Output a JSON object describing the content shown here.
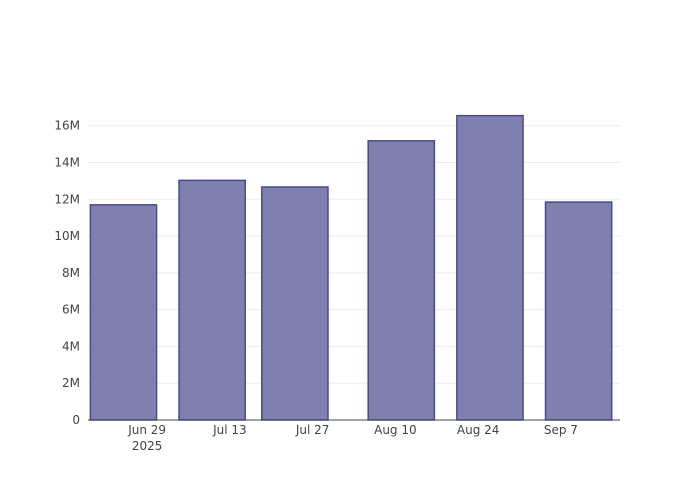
{
  "chart_data": {
    "type": "bar",
    "x": [
      "2025-06-25",
      "2025-07-10",
      "2025-07-24",
      "2025-08-11",
      "2025-08-26",
      "2025-09-10"
    ],
    "values": [
      11700000,
      13030000,
      12670000,
      15180000,
      16550000,
      11850000
    ],
    "color": "#7f7fb0",
    "edge_color": "#4b4b8c",
    "xlim": [
      "2025-06-19",
      "2025-09-17"
    ],
    "xticks": [
      {
        "value": "2025-06-29",
        "label": "Jun 29\n2025"
      },
      {
        "value": "2025-07-13",
        "label": "Jul 13"
      },
      {
        "value": "2025-07-27",
        "label": "Jul 27"
      },
      {
        "value": "2025-08-10",
        "label": "Aug 10"
      },
      {
        "value": "2025-08-24",
        "label": "Aug 24"
      },
      {
        "value": "2025-09-07",
        "label": "Sep 7"
      }
    ],
    "ylim": [
      0,
      17400000
    ],
    "yticks": [
      0,
      {
        "value": 2000000,
        "label": "2M"
      },
      {
        "value": 4000000,
        "label": "4M"
      },
      {
        "value": 6000000,
        "label": "6M"
      },
      {
        "value": 8000000,
        "label": "8M"
      },
      {
        "value": 10000000,
        "label": "10M"
      },
      {
        "value": 12000000,
        "label": "12M"
      },
      {
        "value": 14000000,
        "label": "14M"
      },
      {
        "value": 16000000,
        "label": "16M"
      }
    ],
    "grid": true
  }
}
